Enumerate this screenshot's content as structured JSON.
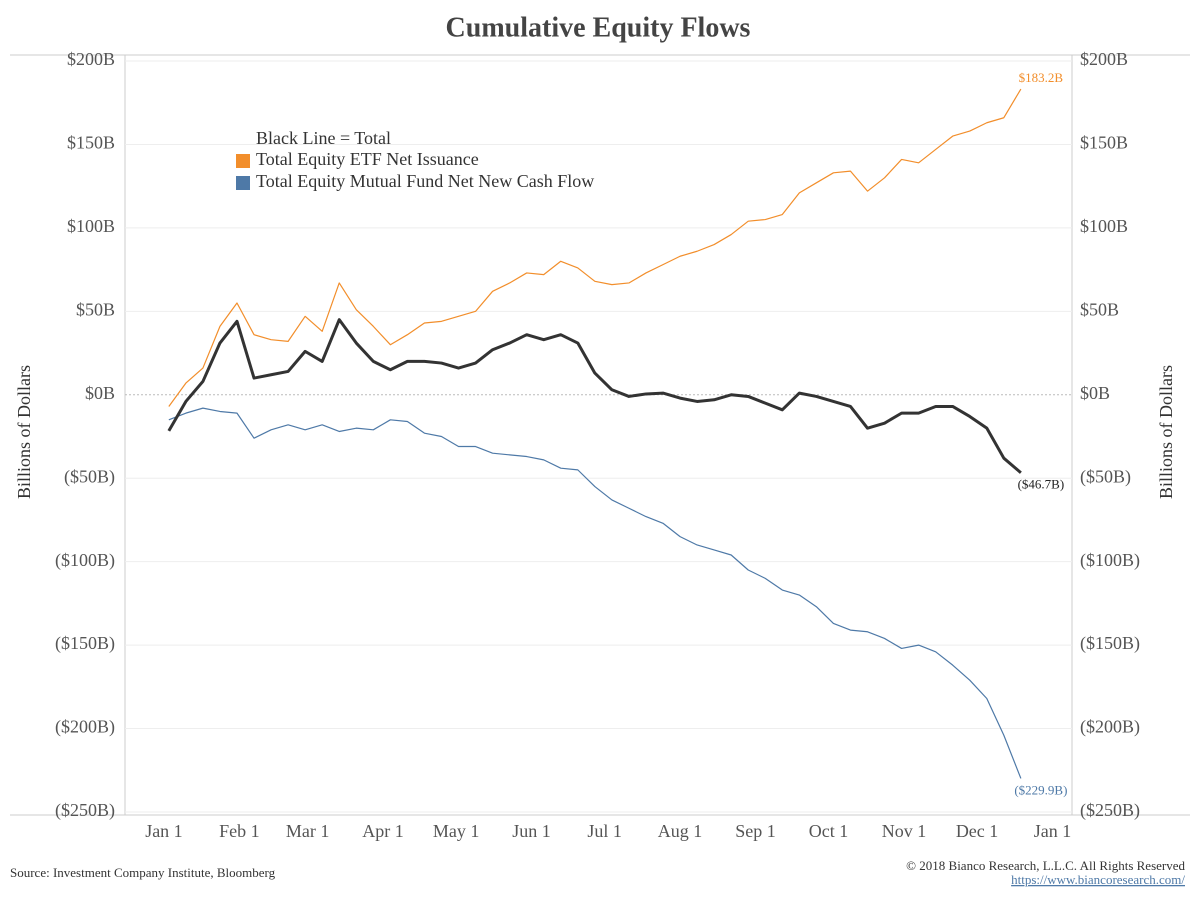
{
  "chart_data": {
    "type": "line",
    "title": "Cumulative Equity Flows",
    "y_label": "Billions of Dollars",
    "y2_label": "Billions of Dollars",
    "legend_title": "Black Line = Total",
    "source": "Source: Investment Company Institute, Bloomberg",
    "copyright": "© 2018 Bianco Research, L.L.C. All Rights Reserved",
    "url": "https://www.biancoresearch.com/",
    "xlim": [
      -16,
      373
    ],
    "xticks": [
      {
        "value": 0,
        "label": "Jan 1"
      },
      {
        "value": 31,
        "label": "Feb 1"
      },
      {
        "value": 59,
        "label": "Mar 1"
      },
      {
        "value": 90,
        "label": "Apr 1"
      },
      {
        "value": 120,
        "label": "May 1"
      },
      {
        "value": 151,
        "label": "Jun 1"
      },
      {
        "value": 181,
        "label": "Jul 1"
      },
      {
        "value": 212,
        "label": "Aug 1"
      },
      {
        "value": 243,
        "label": "Sep 1"
      },
      {
        "value": 273,
        "label": "Oct 1"
      },
      {
        "value": 304,
        "label": "Nov 1"
      },
      {
        "value": 334,
        "label": "Dec 1"
      },
      {
        "value": 365,
        "label": "Jan 1"
      }
    ],
    "ylim": [
      -250,
      200
    ],
    "yticks": [
      {
        "value": 200,
        "label": "$200B"
      },
      {
        "value": 150,
        "label": "$150B"
      },
      {
        "value": 100,
        "label": "$100B"
      },
      {
        "value": 50,
        "label": "$50B"
      },
      {
        "value": 0,
        "label": "$0B"
      },
      {
        "value": -50,
        "label": "($50B)"
      },
      {
        "value": -100,
        "label": "($100B)"
      },
      {
        "value": -150,
        "label": "($150B)"
      },
      {
        "value": -200,
        "label": "($200B)"
      },
      {
        "value": -250,
        "label": "($250B)"
      }
    ],
    "y2lim": [
      -250,
      200
    ],
    "y2ticks": [
      {
        "value": 200,
        "label": "$200B"
      },
      {
        "value": 150,
        "label": "$150B"
      },
      {
        "value": 100,
        "label": "$100B"
      },
      {
        "value": 50,
        "label": "$50B"
      },
      {
        "value": 0,
        "label": "$0B"
      },
      {
        "value": -50,
        "label": "($50B)"
      },
      {
        "value": -100,
        "label": "($100B)"
      },
      {
        "value": -150,
        "label": "($150B)"
      },
      {
        "value": -200,
        "label": "($200B)"
      },
      {
        "value": -250,
        "label": "($250B)"
      }
    ],
    "grid": true,
    "x": [
      2,
      9,
      16,
      23,
      30,
      37,
      44,
      51,
      58,
      65,
      72,
      79,
      86,
      93,
      100,
      107,
      114,
      121,
      128,
      135,
      142,
      149,
      156,
      163,
      170,
      177,
      184,
      191,
      198,
      205,
      212,
      219,
      226,
      233,
      240,
      247,
      254,
      261,
      268,
      275,
      282,
      289,
      296,
      303,
      310,
      317,
      324,
      331,
      338,
      345,
      352
    ],
    "series": [
      {
        "name": "Total Equity ETF Net Issuance",
        "color": "#f28e2b",
        "width": 1.2,
        "values": [
          -7,
          7,
          16,
          41,
          55,
          36,
          33,
          32,
          47,
          38,
          67,
          51,
          41,
          30,
          36,
          43,
          44,
          47,
          50,
          62,
          67,
          73,
          72,
          80,
          76,
          68,
          66,
          67,
          73,
          78,
          83,
          86,
          90,
          96,
          104,
          105,
          108,
          121,
          127,
          133,
          134,
          122,
          130,
          141,
          139,
          147,
          155,
          158,
          163,
          166,
          183.2
        ],
        "value_labels": [
          null,
          null,
          null,
          null,
          null,
          null,
          null,
          null,
          null,
          null,
          null,
          null,
          null,
          null,
          null,
          null,
          null,
          null,
          null,
          null,
          null,
          null,
          null,
          null,
          null,
          null,
          null,
          null,
          null,
          null,
          null,
          null,
          null,
          null,
          null,
          null,
          null,
          null,
          null,
          null,
          null,
          null,
          null,
          null,
          null,
          null,
          null,
          null,
          null,
          null,
          "$183.2B"
        ]
      },
      {
        "name": "Total Equity Mutual Fund Net New Cash Flow",
        "color": "#4e79a7",
        "width": 1.2,
        "values": [
          -15,
          -11,
          -8,
          -10,
          -11,
          -26,
          -21,
          -18,
          -21,
          -18,
          -22,
          -20,
          -21,
          -15,
          -16,
          -23,
          -25,
          -31,
          -31,
          -35,
          -36,
          -37,
          -39,
          -44,
          -45,
          -55,
          -63,
          -68,
          -73,
          -77,
          -85,
          -90,
          -93,
          -96,
          -105,
          -110,
          -117,
          -120,
          -127,
          -137,
          -141,
          -142,
          -146,
          -152,
          -150,
          -154,
          -162,
          -171,
          -182,
          -204,
          -229.9
        ],
        "value_labels": [
          null,
          null,
          null,
          null,
          null,
          null,
          null,
          null,
          null,
          null,
          null,
          null,
          null,
          null,
          null,
          null,
          null,
          null,
          null,
          null,
          null,
          null,
          null,
          null,
          null,
          null,
          null,
          null,
          null,
          null,
          null,
          null,
          null,
          null,
          null,
          null,
          null,
          null,
          null,
          null,
          null,
          null,
          null,
          null,
          null,
          null,
          null,
          null,
          null,
          null,
          "($229.9B)"
        ]
      },
      {
        "color": "#333333",
        "width": 3,
        "values": [
          -21.6,
          -4,
          8,
          31,
          44,
          10,
          12,
          14,
          26,
          20,
          45,
          31,
          20,
          15,
          20,
          20,
          19,
          16,
          19,
          27,
          31,
          36,
          33,
          36,
          31,
          13,
          3,
          -1,
          0.5,
          1,
          -2,
          -4,
          -3,
          0,
          -1,
          -5,
          -9,
          1,
          -1,
          -4,
          -7,
          -20,
          -17,
          -11,
          -11,
          -7,
          -7,
          -13,
          -20,
          -38,
          -46.7
        ],
        "value_labels": [
          null,
          null,
          null,
          null,
          null,
          null,
          null,
          null,
          null,
          null,
          null,
          null,
          null,
          null,
          null,
          null,
          null,
          null,
          null,
          null,
          null,
          null,
          null,
          null,
          null,
          null,
          null,
          null,
          null,
          null,
          null,
          null,
          null,
          null,
          null,
          null,
          null,
          null,
          null,
          null,
          null,
          null,
          null,
          null,
          null,
          null,
          null,
          null,
          null,
          null,
          "($46.7B)"
        ]
      }
    ]
  }
}
